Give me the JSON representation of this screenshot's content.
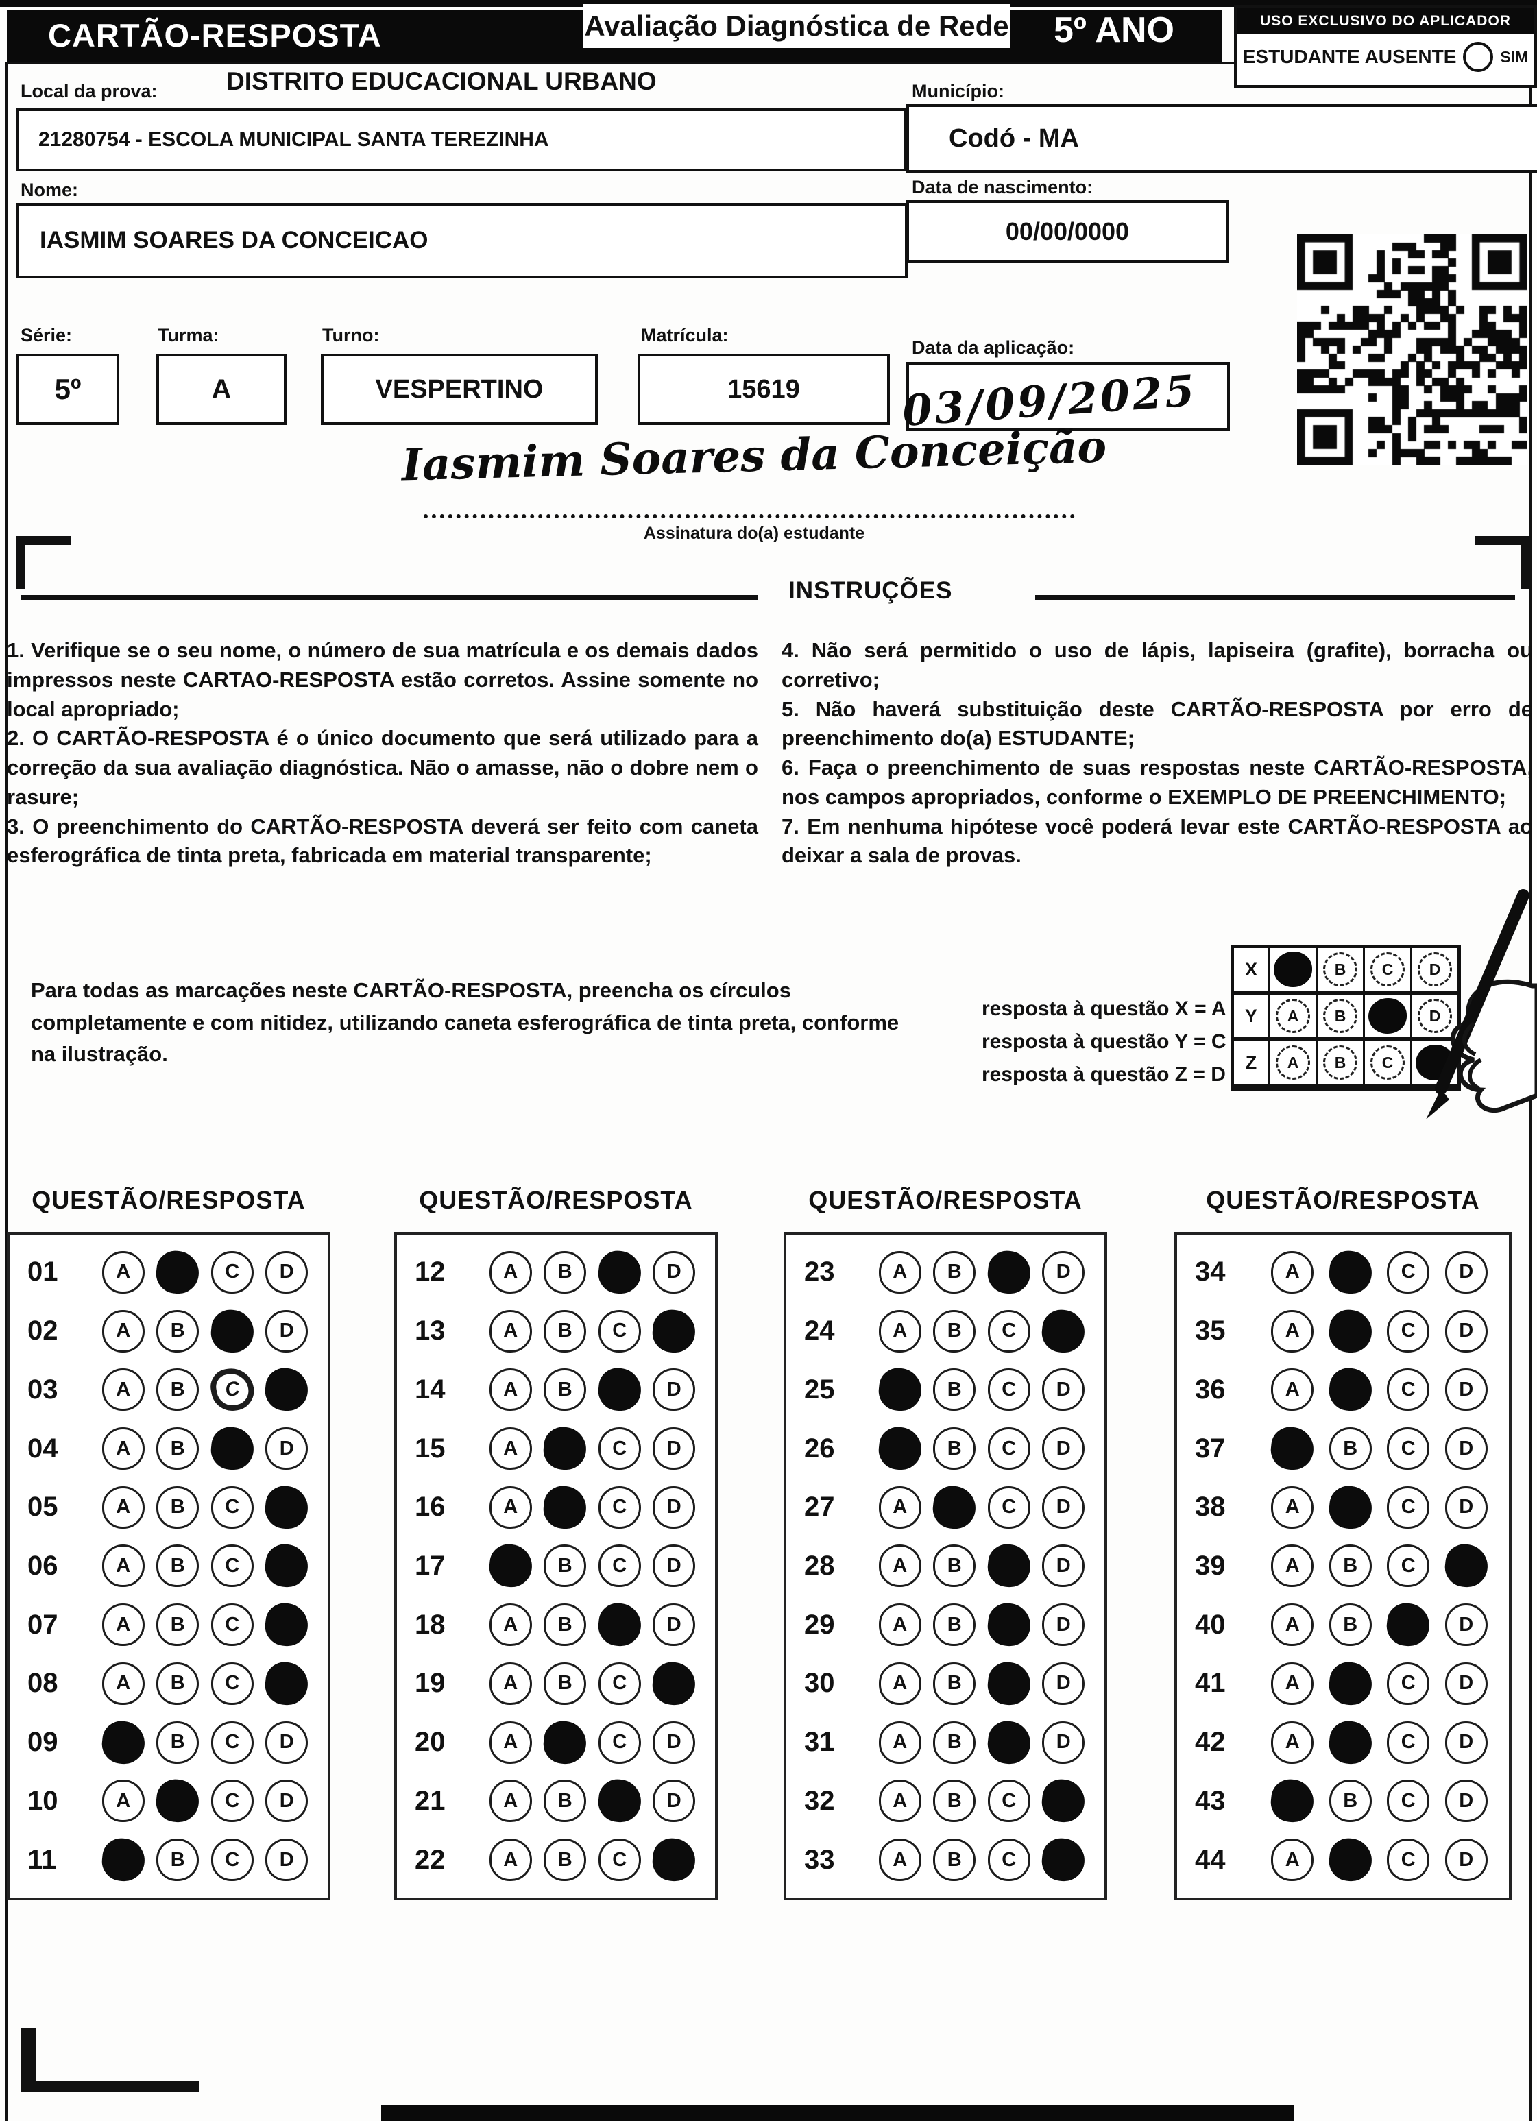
{
  "header": {
    "card_title": "CARTÃO-RESPOSTA",
    "exam_title": "Avaliação Diagnóstica de Rede",
    "grade": "5º ANO",
    "applicator_box_title": "USO EXCLUSIVO DO APLICADOR",
    "absent_label": "ESTUDANTE AUSENTE",
    "absent_option": "SIM"
  },
  "form": {
    "local_label": "Local da prova:",
    "local_value": "DISTRITO EDUCACIONAL URBANO",
    "school_value": "21280754 - ESCOLA MUNICIPAL SANTA TEREZINHA",
    "municipio_label": "Município:",
    "municipio_value": "Codó - MA",
    "nome_label": "Nome:",
    "nome_value": "IASMIM SOARES DA CONCEICAO",
    "nascimento_label": "Data de nascimento:",
    "nascimento_value": "00/00/0000",
    "serie_label": "Série:",
    "serie_value": "5º",
    "turma_label": "Turma:",
    "turma_value": "A",
    "turno_label": "Turno:",
    "turno_value": "VESPERTINO",
    "matricula_label": "Matrícula:",
    "matricula_value": "15619",
    "aplicacao_label": "Data da aplicação:",
    "aplicacao_value": "03/09/2025",
    "assinatura_value": "Iasmim Soares da Conceição",
    "assinatura_caption": "Assinatura do(a) estudante"
  },
  "instructions": {
    "title": "INSTRUÇÕES",
    "left": [
      "1. Verifique se o seu nome, o número de sua matrícula e os demais dados impressos neste CARTAO-RESPOSTA estão corretos. Assine somente no local apropriado;",
      "2. O CARTÃO-RESPOSTA é o único documento que será utilizado para a correção da sua avaliação diagnóstica. Não o amasse, não o dobre nem o rasure;",
      "3. O preenchimento do CARTÃO-RESPOSTA deverá ser feito com caneta esferográfica de tinta preta, fabricada em material transparente;"
    ],
    "right": [
      "4. Não será permitido o uso de lápis, lapiseira (grafite), borracha ou corretivo;",
      "5. Não haverá substituição deste CARTÃO-RESPOSTA por erro de preenchimento do(a) ESTUDANTE;",
      "6. Faça o preenchimento de suas respostas neste CARTÃO-RESPOSTA, nos campos apropriados, conforme o EXEMPLO DE PREENCHIMENTO;",
      "7. Em nenhuma hipótese você poderá levar este CARTÃO-RESPOSTA ao deixar a sala de provas."
    ],
    "fill_note": "Para todas as marcações neste CARTÃO-RESPOSTA, preencha os círculos completamente e com nitidez, utilizando caneta esferográfica de tinta preta, conforme na ilustração.",
    "example_lines": [
      "resposta à questão X = A",
      "resposta à questão Y = C",
      "resposta à questão Z = D"
    ],
    "example_rows": [
      {
        "label": "X",
        "options": [
          "A",
          "B",
          "C",
          "D"
        ],
        "marked": "A"
      },
      {
        "label": "Y",
        "options": [
          "A",
          "B",
          "C",
          "D"
        ],
        "marked": "C"
      },
      {
        "label": "Z",
        "options": [
          "A",
          "B",
          "C",
          "D"
        ],
        "marked": "D"
      }
    ]
  },
  "answers": {
    "column_header": "QUESTÃO/RESPOSTA",
    "options": [
      "A",
      "B",
      "C",
      "D"
    ],
    "columns": [
      {
        "questions": [
          {
            "num": "01",
            "marked": "B"
          },
          {
            "num": "02",
            "marked": "C"
          },
          {
            "num": "03",
            "marked": "D",
            "scribbled": "C"
          },
          {
            "num": "04",
            "marked": "C"
          },
          {
            "num": "05",
            "marked": "D"
          },
          {
            "num": "06",
            "marked": "D"
          },
          {
            "num": "07",
            "marked": "D"
          },
          {
            "num": "08",
            "marked": "D"
          },
          {
            "num": "09",
            "marked": "A"
          },
          {
            "num": "10",
            "marked": "B"
          },
          {
            "num": "11",
            "marked": "A"
          }
        ]
      },
      {
        "questions": [
          {
            "num": "12",
            "marked": "C"
          },
          {
            "num": "13",
            "marked": "D"
          },
          {
            "num": "14",
            "marked": "C"
          },
          {
            "num": "15",
            "marked": "B"
          },
          {
            "num": "16",
            "marked": "B"
          },
          {
            "num": "17",
            "marked": "A"
          },
          {
            "num": "18",
            "marked": "C"
          },
          {
            "num": "19",
            "marked": "D"
          },
          {
            "num": "20",
            "marked": "B"
          },
          {
            "num": "21",
            "marked": "C"
          },
          {
            "num": "22",
            "marked": "D"
          }
        ]
      },
      {
        "questions": [
          {
            "num": "23",
            "marked": "C"
          },
          {
            "num": "24",
            "marked": "D"
          },
          {
            "num": "25",
            "marked": "A"
          },
          {
            "num": "26",
            "marked": "A"
          },
          {
            "num": "27",
            "marked": "B"
          },
          {
            "num": "28",
            "marked": "C"
          },
          {
            "num": "29",
            "marked": "C"
          },
          {
            "num": "30",
            "marked": "C"
          },
          {
            "num": "31",
            "marked": "C"
          },
          {
            "num": "32",
            "marked": "D"
          },
          {
            "num": "33",
            "marked": "D"
          }
        ]
      },
      {
        "questions": [
          {
            "num": "34",
            "marked": "B"
          },
          {
            "num": "35",
            "marked": "B"
          },
          {
            "num": "36",
            "marked": "B"
          },
          {
            "num": "37",
            "marked": "A"
          },
          {
            "num": "38",
            "marked": "B"
          },
          {
            "num": "39",
            "marked": "D"
          },
          {
            "num": "40",
            "marked": "C"
          },
          {
            "num": "41",
            "marked": "B"
          },
          {
            "num": "42",
            "marked": "B"
          },
          {
            "num": "43",
            "marked": "A"
          },
          {
            "num": "44",
            "marked": "B"
          }
        ]
      }
    ]
  }
}
